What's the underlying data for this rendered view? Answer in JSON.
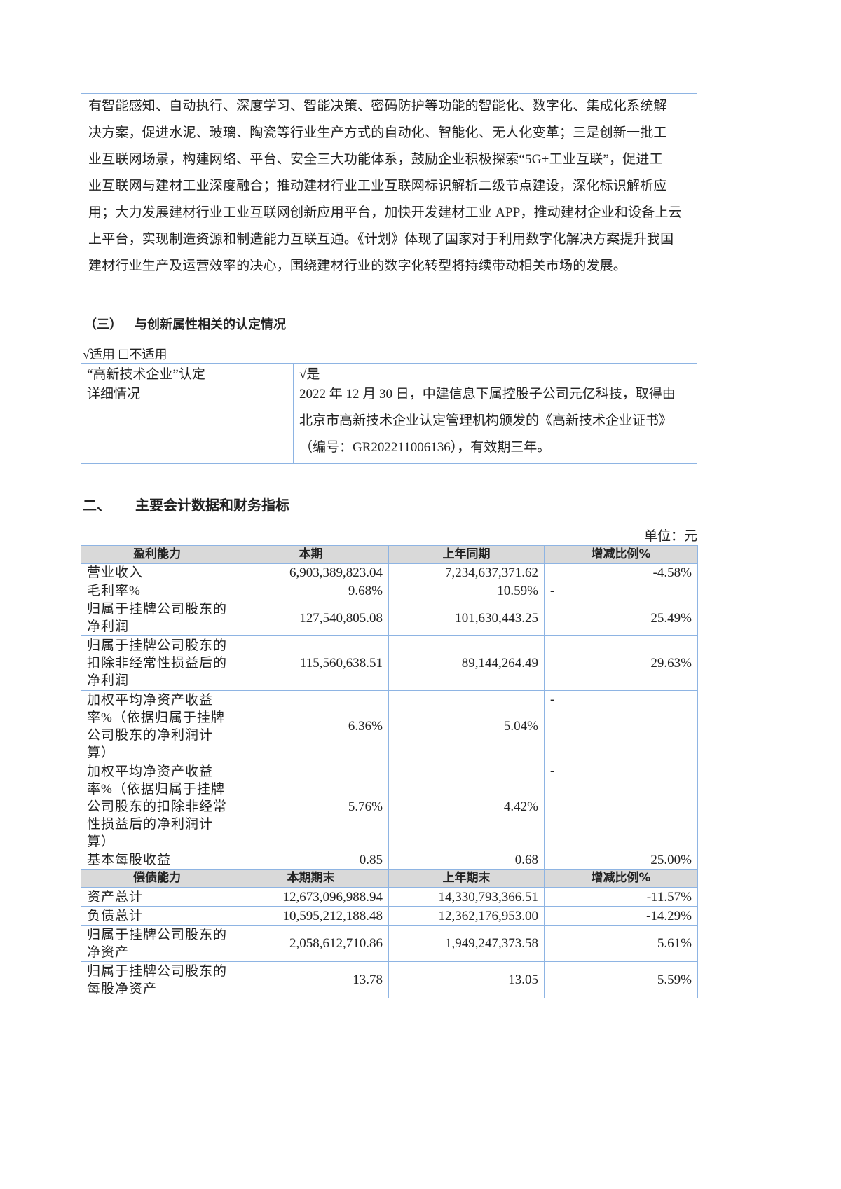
{
  "intro_box": {
    "lines": [
      "有智能感知、自动执行、深度学习、智能决策、密码防护等功能的智能化、数字化、集成化系统解",
      "决方案，促进水泥、玻璃、陶瓷等行业生产方式的自动化、智能化、无人化变革；三是创新一批工",
      "业互联网场景，构建网络、平台、安全三大功能体系，鼓励企业积极探索“5G+工业互联”，促进工",
      "业互联网与建材工业深度融合；推动建材行业工业互联网标识解析二级节点建设，深化标识解析应",
      "用；大力发展建材行业工业互联网创新应用平台，加快开发建材工业 APP，推动建材企业和设备上云",
      "上平台，实现制造资源和制造能力互联互通。《计划》体现了国家对于利用数字化解决方案提升我国",
      "建材行业生产及运营效率的决心，围绕建材行业的数字化转型将持续带动相关市场的发展。"
    ]
  },
  "section3": {
    "number": "（三）",
    "title": "与创新属性相关的认定情况",
    "applicability": "√适用 ☐不适用",
    "table": {
      "row1_label": "“高新技术企业”认定",
      "row1_value": "√是",
      "row2_label": "详细情况",
      "row2_lines": [
        "2022 年 12 月 30 日，中建信息下属控股子公司元亿科技，取得由",
        "北京市高新技术企业认定管理机构颁发的《高新技术企业证书》",
        "（编号：GR202211006136），有效期三年。"
      ]
    }
  },
  "section2": {
    "number": "二、",
    "title": "主要会计数据和财务指标",
    "unit": "单位：元",
    "profit_header": [
      "盈利能力",
      "本期",
      "上年同期",
      "增减比例%"
    ],
    "profit_rows": [
      [
        "营业收入",
        "6,903,389,823.04",
        "7,234,637,371.62",
        "-4.58%"
      ],
      [
        "毛利率%",
        "9.68%",
        "10.59%",
        "-"
      ],
      [
        "归属于挂牌公司股东的\n净利润",
        "127,540,805.08",
        "101,630,443.25",
        "25.49%"
      ],
      [
        "归属于挂牌公司股东的\n扣除非经常性损益后的\n净利润",
        "115,560,638.51",
        "89,144,264.49",
        "29.63%"
      ],
      [
        "加权平均净资产收益\n率%（依据归属于挂牌\n公司股东的净利润计\n算）",
        "6.36%",
        "5.04%",
        "-"
      ],
      [
        "加权平均净资产收益\n率%（依据归属于挂牌\n公司股东的扣除非经常\n性损益后的净利润计\n算）",
        "5.76%",
        "4.42%",
        "-"
      ],
      [
        "基本每股收益",
        "0.85",
        "0.68",
        "25.00%"
      ]
    ],
    "solvency_header": [
      "偿债能力",
      "本期期末",
      "上年期末",
      "增减比例%"
    ],
    "solvency_rows": [
      [
        "资产总计",
        "12,673,096,988.94",
        "14,330,793,366.51",
        "-11.57%"
      ],
      [
        "负债总计",
        "10,595,212,188.48",
        "12,362,176,953.00",
        "-14.29%"
      ],
      [
        "归属于挂牌公司股东的\n净资产",
        "2,058,612,710.86",
        "1,949,247,373.58",
        "5.61%"
      ],
      [
        "归属于挂牌公司股东的\n每股净资产",
        "13.78",
        "13.05",
        "5.59%"
      ]
    ]
  },
  "colors": {
    "border": "#8eb4e3",
    "header_bg": "#d9d9d9"
  }
}
